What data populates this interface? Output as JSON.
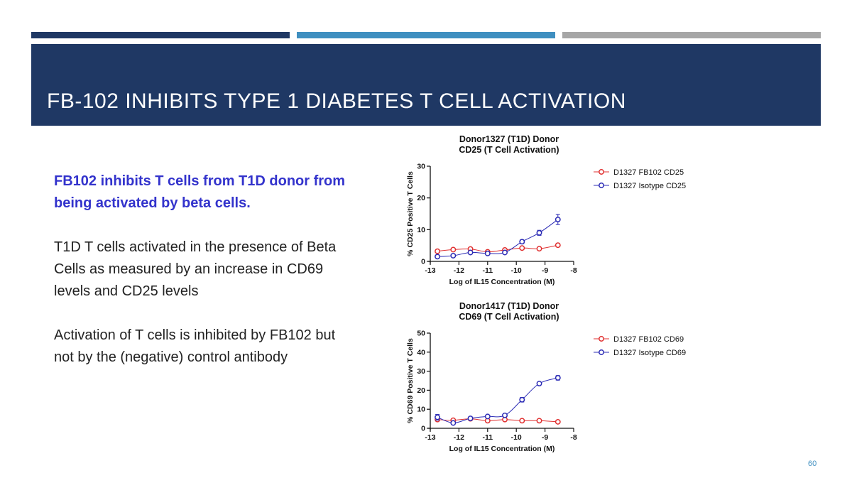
{
  "slide": {
    "title": "FB-102 INHIBITS  TYPE 1 DIABETES T CELL ACTIVATION",
    "page_number": "60",
    "accent_colors": {
      "navy": "#1f3864",
      "blue": "#3f8fc0",
      "grey": "#a6a6a6",
      "lead_text": "#3333cc"
    }
  },
  "text": {
    "lead": "FB102 inhibits T cells from T1D donor from being activated by beta cells.",
    "para1": "T1D T cells activated in the presence of Beta Cells as measured by an increase in CD69 levels and CD25 levels",
    "para2": "Activation of T cells is inhibited by FB102 but not by the (negative) control antibody"
  },
  "chart_data": [
    {
      "type": "scatter",
      "title": "Donor1327 (T1D) Donor",
      "subtitle": "CD25 (T  Cell Activation)",
      "xlabel": "Log of  IL15 Concentration  (M)",
      "ylabel": "% CD25 Positive T Cells",
      "xlim": [
        -13,
        -8
      ],
      "ylim": [
        0,
        30
      ],
      "xticks": [
        "-13",
        "-12",
        "-11",
        "-10",
        "-9",
        "-8"
      ],
      "yticks": [
        "0",
        "10",
        "20",
        "30"
      ],
      "legend_position": "top-right",
      "series": [
        {
          "name": "D1327 FB102 CD25",
          "color": "#e03030",
          "x": [
            -12.75,
            -12.2,
            -11.6,
            -11.0,
            -10.4,
            -9.8,
            -9.2,
            -8.55
          ],
          "y": [
            3.2,
            3.7,
            3.9,
            3.0,
            3.6,
            4.2,
            4.0,
            5.1
          ]
        },
        {
          "name": "D1327 Isotype CD25",
          "color": "#2b2bb5",
          "x": [
            -12.75,
            -12.2,
            -11.6,
            -11.0,
            -10.4,
            -9.8,
            -9.2,
            -8.55
          ],
          "y": [
            1.5,
            1.8,
            2.8,
            2.5,
            2.8,
            6.2,
            9.0,
            13.2
          ],
          "err": [
            0,
            0,
            0,
            0,
            0,
            0.6,
            0.8,
            1.6
          ]
        }
      ]
    },
    {
      "type": "scatter",
      "title": "Donor1417 (T1D) Donor",
      "subtitle": "CD69 (T  Cell Activation)",
      "xlabel": "Log of  IL15 Concentration  (M)",
      "ylabel": "% CD69 Positive T Cells",
      "xlim": [
        -13,
        -8
      ],
      "ylim": [
        0,
        50
      ],
      "xticks": [
        "-13",
        "-12",
        "-11",
        "-10",
        "-9",
        "-8"
      ],
      "yticks": [
        "0",
        "10",
        "20",
        "30",
        "40",
        "50"
      ],
      "legend_position": "top-right",
      "series": [
        {
          "name": "D1327 FB102 CD69",
          "color": "#e03030",
          "x": [
            -12.75,
            -12.2,
            -11.6,
            -11.0,
            -10.4,
            -9.8,
            -9.2,
            -8.55
          ],
          "y": [
            4.6,
            4.2,
            5.0,
            4.0,
            4.6,
            4.0,
            4.0,
            3.4
          ]
        },
        {
          "name": "D1327 Isotype CD69",
          "color": "#2b2bb5",
          "x": [
            -12.75,
            -12.2,
            -11.6,
            -11.0,
            -10.4,
            -9.8,
            -9.2,
            -8.55
          ],
          "y": [
            5.8,
            2.8,
            5.2,
            6.2,
            6.8,
            15.0,
            23.5,
            26.5
          ],
          "err": [
            1.5,
            0,
            0.8,
            0,
            0.8,
            1.2,
            0,
            1.2
          ]
        }
      ]
    }
  ]
}
